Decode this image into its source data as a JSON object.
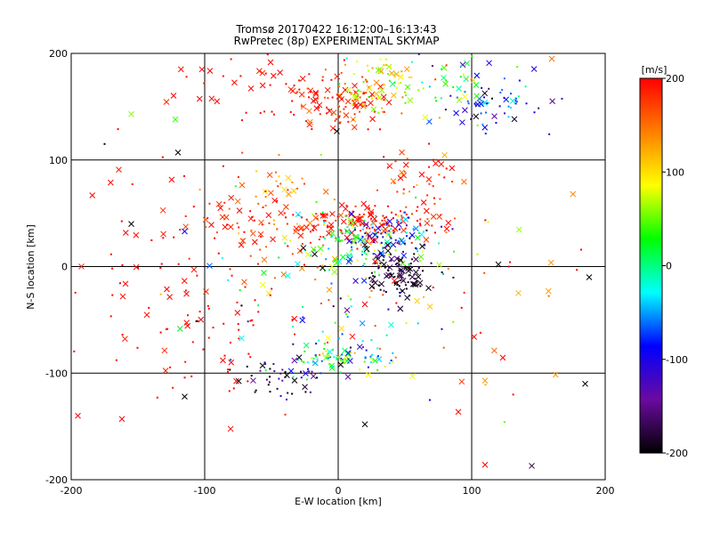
{
  "chart_data": {
    "type": "scatter",
    "title": "Tromsø 20170422 16:12:00–16:13:43",
    "subtitle": "RwPretec (8p) EXPERIMENTAL SKYMAP",
    "xlabel": "E-W location [km]",
    "ylabel": "N-S location [km]",
    "xlim": [
      -200,
      200
    ],
    "ylim": [
      -200,
      200
    ],
    "xticks": [
      "-200",
      "-100",
      "0",
      "100",
      "200"
    ],
    "yticks": [
      "-200",
      "-100",
      "0",
      "100",
      "200"
    ],
    "grid": true,
    "grid_step": 100,
    "marker_kinds": [
      "point",
      "cross"
    ],
    "colorbar": {
      "label": "[m/s]",
      "range": [
        -200,
        200
      ],
      "ticks": [
        "-200",
        "-100",
        "0",
        "100",
        "200"
      ],
      "colormap": "rainbow-black-to-red",
      "stops": [
        "#000000",
        "#6a0aa0",
        "#0000ff",
        "#00ffff",
        "#00ff00",
        "#ffff00",
        "#ff7f00",
        "#ff0000"
      ]
    },
    "clusters": [
      {
        "center": [
          5,
          155
        ],
        "spread": [
          18,
          12
        ],
        "count": 110,
        "velocity": 180,
        "vspread": 25
      },
      {
        "center": [
          30,
          170
        ],
        "spread": [
          14,
          14
        ],
        "count": 70,
        "velocity": 90,
        "vspread": 40
      },
      {
        "center": [
          120,
          150
        ],
        "spread": [
          20,
          12
        ],
        "count": 60,
        "velocity": -100,
        "vspread": 50
      },
      {
        "center": [
          90,
          175
        ],
        "spread": [
          30,
          15
        ],
        "count": 50,
        "velocity": 10,
        "vspread": 60
      },
      {
        "center": [
          -60,
          170
        ],
        "spread": [
          35,
          20
        ],
        "count": 45,
        "velocity": 200,
        "vspread": 10
      },
      {
        "center": [
          15,
          40
        ],
        "spread": [
          30,
          10
        ],
        "count": 160,
        "velocity": 190,
        "vspread": 20
      },
      {
        "center": [
          20,
          20
        ],
        "spread": [
          25,
          14
        ],
        "count": 120,
        "velocity": 20,
        "vspread": 70
      },
      {
        "center": [
          45,
          -5
        ],
        "spread": [
          12,
          12
        ],
        "count": 110,
        "velocity": -190,
        "vspread": 20
      },
      {
        "center": [
          40,
          25
        ],
        "spread": [
          18,
          14
        ],
        "count": 60,
        "velocity": -90,
        "vspread": 40
      },
      {
        "center": [
          -60,
          40
        ],
        "spread": [
          30,
          20
        ],
        "count": 70,
        "velocity": 180,
        "vspread": 25
      },
      {
        "center": [
          65,
          80
        ],
        "spread": [
          20,
          15
        ],
        "count": 40,
        "velocity": 170,
        "vspread": 25
      },
      {
        "center": [
          -40,
          75
        ],
        "spread": [
          20,
          15
        ],
        "count": 30,
        "velocity": 140,
        "vspread": 40
      },
      {
        "center": [
          5,
          -85
        ],
        "spread": [
          18,
          8
        ],
        "count": 90,
        "velocity": 5,
        "vspread": 80
      },
      {
        "center": [
          -45,
          -100
        ],
        "spread": [
          15,
          12
        ],
        "count": 50,
        "velocity": -150,
        "vspread": 60
      },
      {
        "center": [
          -100,
          -70
        ],
        "spread": [
          35,
          30
        ],
        "count": 60,
        "velocity": 200,
        "vspread": 10
      },
      {
        "center": [
          -10,
          -30
        ],
        "spread": [
          45,
          30
        ],
        "count": 90,
        "velocity": 30,
        "vspread": 120
      },
      {
        "center": [
          -150,
          20
        ],
        "spread": [
          40,
          50
        ],
        "count": 45,
        "velocity": 200,
        "vspread": 10
      },
      {
        "center": [
          100,
          -50
        ],
        "spread": [
          60,
          70
        ],
        "count": 40,
        "velocity": 150,
        "vspread": 60
      }
    ],
    "isolated_points": [
      [
        -175,
        115,
        -200,
        "point"
      ],
      [
        -120,
        107,
        -200,
        "cross"
      ],
      [
        -155,
        40,
        -200,
        "cross"
      ],
      [
        -115,
        33,
        -90,
        "cross"
      ],
      [
        -195,
        -140,
        200,
        "cross"
      ],
      [
        -162,
        -143,
        200,
        "cross"
      ],
      [
        -115,
        -122,
        -200,
        "cross"
      ],
      [
        -155,
        143,
        60,
        "cross"
      ],
      [
        -122,
        138,
        40,
        "cross"
      ],
      [
        20,
        -148,
        -200,
        "cross"
      ],
      [
        145,
        -187,
        -180,
        "cross"
      ],
      [
        120,
        2,
        -200,
        "cross"
      ],
      [
        188,
        -10,
        -200,
        "cross"
      ],
      [
        185,
        -110,
        -200,
        "cross"
      ],
      [
        135,
        -25,
        120,
        "cross"
      ],
      [
        110,
        -107,
        130,
        "cross"
      ],
      [
        110,
        -186,
        200,
        "cross"
      ],
      [
        -1,
        127,
        -200,
        "cross"
      ],
      [
        160,
        195,
        150,
        "cross"
      ]
    ]
  }
}
